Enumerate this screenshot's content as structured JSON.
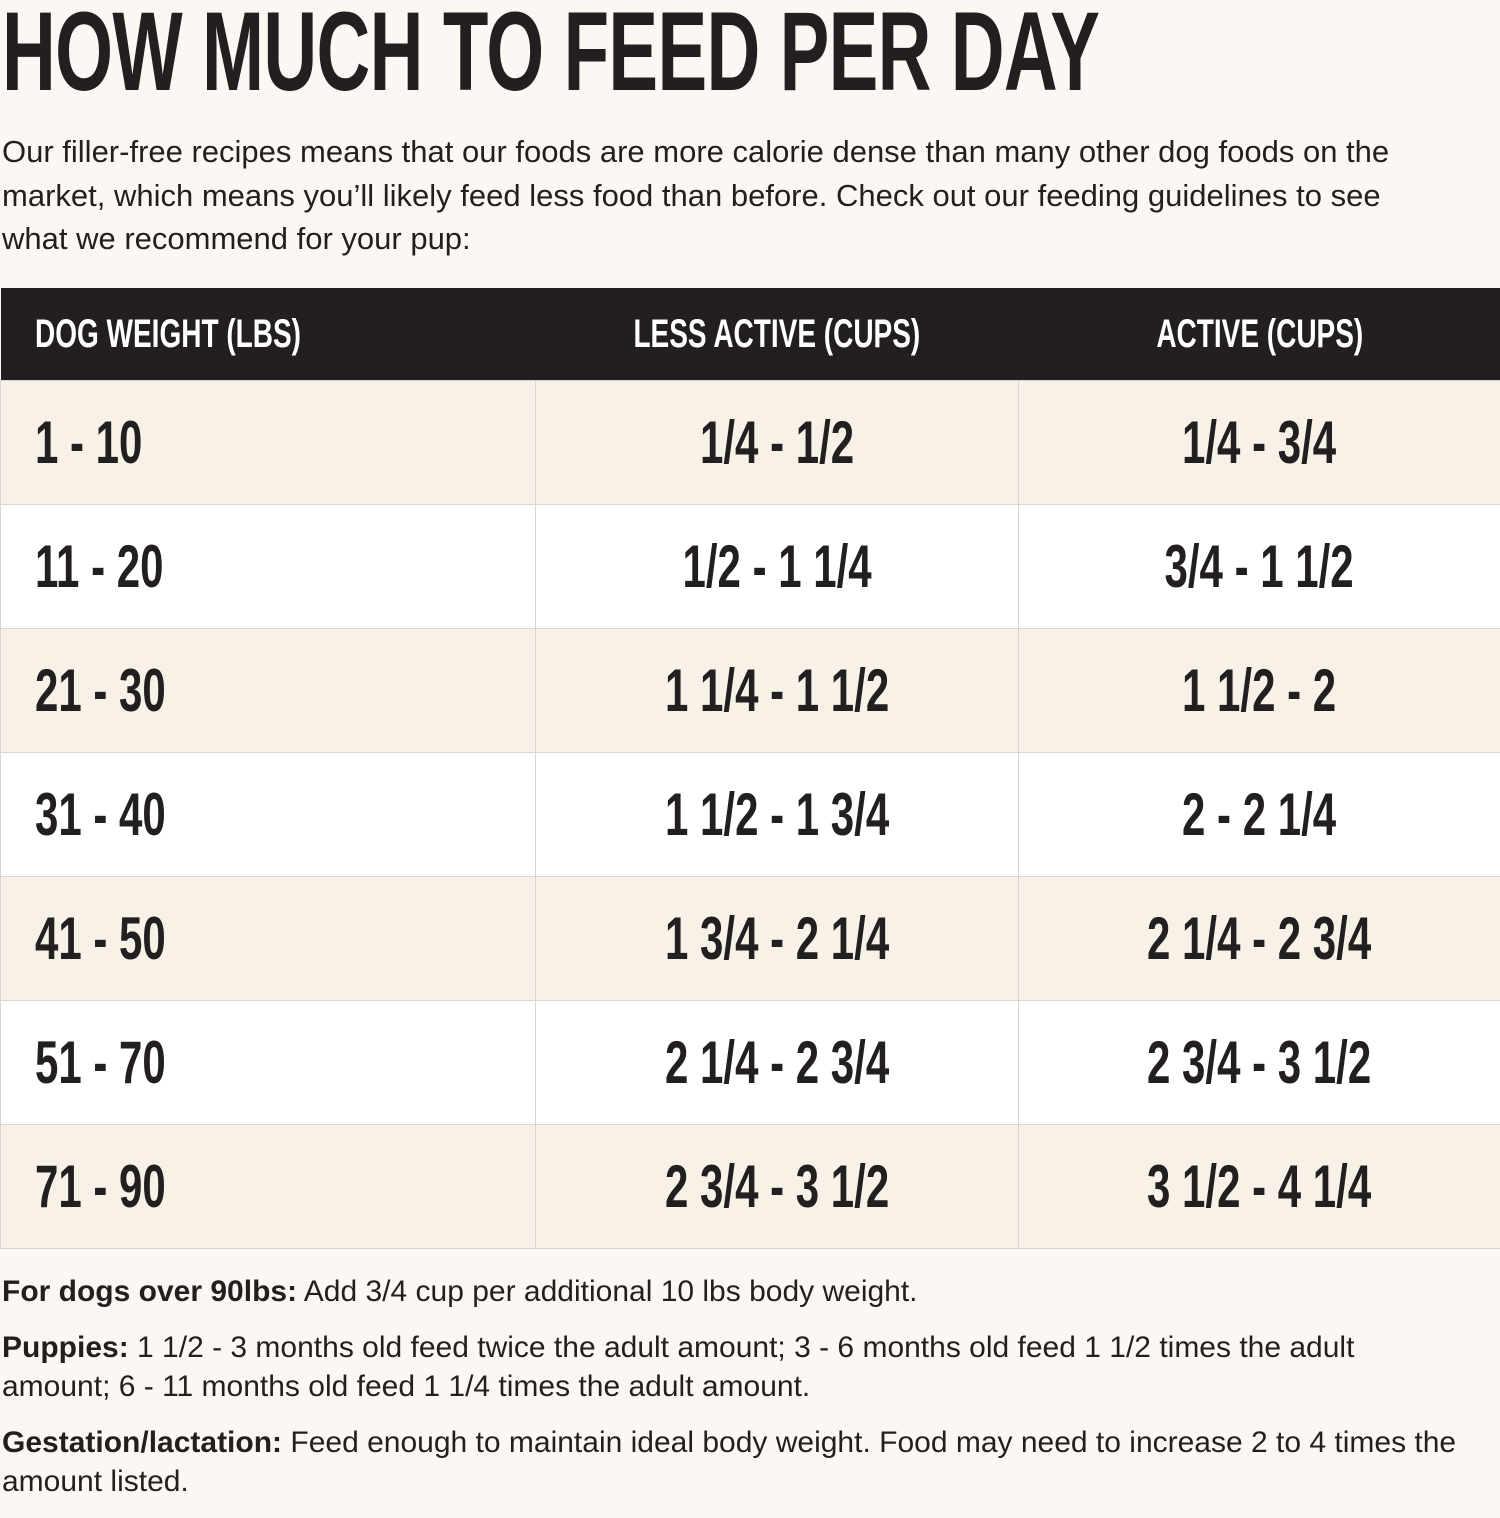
{
  "header": {
    "title": "HOW MUCH TO FEED PER DAY",
    "intro": "Our filler-free recipes means that our foods are more calorie dense than many other dog foods on the market, which means you’ll likely feed less food than before. Check out our feeding guidelines to see what we recommend for your pup:"
  },
  "table": {
    "columns": [
      "DOG WEIGHT (LBS)",
      "LESS ACTIVE (CUPS)",
      "ACTIVE (CUPS)"
    ],
    "rows": [
      [
        "1 - 10",
        "1/4 - 1/2",
        "1/4 - 3/4"
      ],
      [
        "11 - 20",
        "1/2 - 1 1/4",
        "3/4 - 1 1/2"
      ],
      [
        "21 - 30",
        "1 1/4 - 1 1/2",
        "1 1/2 - 2"
      ],
      [
        "31 - 40",
        "1 1/2 - 1 3/4",
        "2 - 2 1/4"
      ],
      [
        "41 - 50",
        "1 3/4 - 2 1/4",
        "2 1/4 - 2 3/4"
      ],
      [
        "51 - 70",
        "2 1/4 - 2 3/4",
        "2 3/4 - 3 1/2"
      ],
      [
        "71 - 90",
        "2 3/4 - 3 1/2",
        "3 1/2 - 4 1/4"
      ]
    ]
  },
  "notes": [
    {
      "label": "For dogs over 90lbs:",
      "text": "Add 3/4 cup per additional 10 lbs body weight."
    },
    {
      "label": "Puppies:",
      "text": "1 1/2 - 3 months old feed twice the adult amount; 3 - 6 months old feed 1 1/2 times the adult amount; 6 - 11 months old feed 1 1/4 times the adult amount."
    },
    {
      "label": "Gestation/lactation:",
      "text": "Feed enough to maintain ideal body weight. Food may need to increase 2 to 4 times the amount listed."
    }
  ]
}
